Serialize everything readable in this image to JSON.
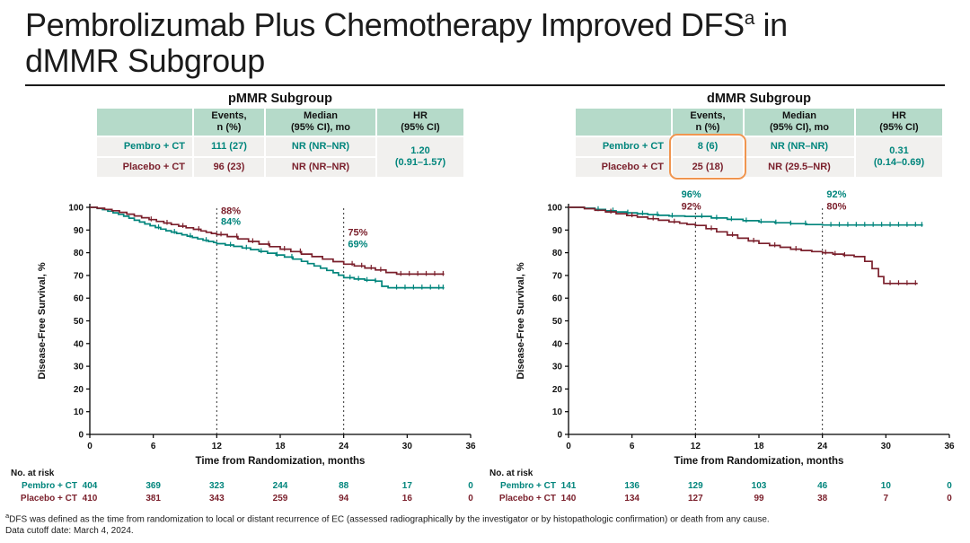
{
  "title": {
    "line1_main": "Pembrolizumab Plus Chemotherapy Improved DFS",
    "superscript": "a",
    "line1_tail": " in",
    "line2": "dMMR Subgroup"
  },
  "colors": {
    "teal": "#00857C",
    "maroon": "#7A1F2B",
    "header_green": "#B5DAC9",
    "cell_gray": "#F1F0EE",
    "highlight_orange": "#F0954F",
    "axis_black": "#111111"
  },
  "panels": [
    {
      "title": "pMMR Subgroup",
      "table": {
        "col_headers": [
          [
            "Events,",
            "n (%)"
          ],
          [
            "Median",
            "(95% CI), mo"
          ],
          [
            "HR",
            "(95% CI)"
          ]
        ],
        "rows": [
          {
            "label": "Pembro + CT",
            "events": "111 (27)",
            "median": "NR (NR–NR)"
          },
          {
            "label": "Placebo + CT",
            "events": "96 (23)",
            "median": "NR (NR–NR)"
          }
        ],
        "hr": [
          "1.20",
          "(0.91–1.57)"
        ],
        "highlight_events": false
      }
    },
    {
      "title": "dMMR Subgroup",
      "table": {
        "col_headers": [
          [
            "Events,",
            "n (%)"
          ],
          [
            "Median",
            "(95% CI), mo"
          ],
          [
            "HR",
            "(95% CI)"
          ]
        ],
        "rows": [
          {
            "label": "Pembro + CT",
            "events": "8 (6)",
            "median": "NR (NR–NR)"
          },
          {
            "label": "Placebo + CT",
            "events": "25 (18)",
            "median": "NR (29.5–NR)"
          }
        ],
        "hr": [
          "0.31",
          "(0.14–0.69)"
        ],
        "highlight_events": true
      }
    }
  ],
  "chart_data": [
    {
      "type": "line",
      "title": "pMMR Subgroup",
      "xlabel": "Time from Randomization, months",
      "ylabel": "Disease-Free Survival, %",
      "xlim": [
        0,
        36
      ],
      "ylim": [
        0,
        100
      ],
      "xticks": [
        0,
        6,
        12,
        18,
        24,
        30,
        36
      ],
      "yticks": [
        0,
        10,
        20,
        30,
        40,
        50,
        60,
        70,
        80,
        90,
        100
      ],
      "grid": false,
      "reference_lines_x": [
        12,
        24
      ],
      "series": [
        {
          "name": "Pembro + CT",
          "color": "teal",
          "step": [
            [
              0,
              100
            ],
            [
              0.7,
              99.5
            ],
            [
              1.2,
              99
            ],
            [
              1.7,
              98.3
            ],
            [
              2.2,
              97.6
            ],
            [
              2.7,
              96.9
            ],
            [
              3.2,
              96.1
            ],
            [
              3.7,
              95.2
            ],
            [
              4.2,
              94.3
            ],
            [
              4.7,
              93.5
            ],
            [
              5.2,
              92.7
            ],
            [
              5.7,
              91.9
            ],
            [
              6.2,
              91.1
            ],
            [
              6.7,
              90.4
            ],
            [
              7.2,
              89.7
            ],
            [
              7.7,
              89.1
            ],
            [
              8.2,
              88.5
            ],
            [
              8.7,
              87.9
            ],
            [
              9.2,
              87.3
            ],
            [
              9.7,
              86.7
            ],
            [
              10.2,
              86.1
            ],
            [
              10.7,
              85.5
            ],
            [
              11.2,
              85
            ],
            [
              11.7,
              84.5
            ],
            [
              12,
              84
            ],
            [
              12.8,
              83.4
            ],
            [
              13.6,
              82.8
            ],
            [
              14.4,
              82.1
            ],
            [
              15.2,
              81.4
            ],
            [
              16,
              80.6
            ],
            [
              16.8,
              79.8
            ],
            [
              17.6,
              79
            ],
            [
              18.4,
              78.1
            ],
            [
              19.2,
              77.2
            ],
            [
              20,
              76.2
            ],
            [
              20.6,
              75.2
            ],
            [
              21.2,
              74.2
            ],
            [
              21.8,
              73.2
            ],
            [
              22.4,
              72.2
            ],
            [
              23,
              71.2
            ],
            [
              23.5,
              70.1
            ],
            [
              24,
              69
            ],
            [
              25,
              68.4
            ],
            [
              26,
              67.9
            ],
            [
              27,
              67.5
            ],
            [
              27.6,
              65.2
            ],
            [
              28.2,
              64.6
            ],
            [
              33.5,
              64.6
            ]
          ],
          "censor_times": [
            6.5,
            8,
            9.5,
            11,
            13.3,
            14.8,
            16.2,
            17.7,
            19.1,
            24.6,
            25.4,
            26.2,
            27,
            29,
            29.8,
            30.6,
            31.4,
            32.2,
            33,
            33.4
          ]
        },
        {
          "name": "Placebo + CT",
          "color": "maroon",
          "step": [
            [
              0,
              100
            ],
            [
              0.7,
              99.6
            ],
            [
              1.4,
              99.1
            ],
            [
              2.1,
              98.5
            ],
            [
              2.8,
              97.8
            ],
            [
              3.5,
              97
            ],
            [
              4.2,
              96.2
            ],
            [
              4.9,
              95.4
            ],
            [
              5.6,
              94.6
            ],
            [
              6.3,
              93.8
            ],
            [
              7,
              93.1
            ],
            [
              7.7,
              92.4
            ],
            [
              8.4,
              91.7
            ],
            [
              9.1,
              91
            ],
            [
              9.8,
              90.3
            ],
            [
              10.5,
              89.6
            ],
            [
              11,
              89
            ],
            [
              11.5,
              88.5
            ],
            [
              12,
              88
            ],
            [
              13,
              87.1
            ],
            [
              14,
              86.1
            ],
            [
              15,
              85
            ],
            [
              16,
              83.8
            ],
            [
              17,
              82.7
            ],
            [
              18,
              81.6
            ],
            [
              19,
              80.5
            ],
            [
              20,
              79.4
            ],
            [
              21,
              78.3
            ],
            [
              22,
              77.2
            ],
            [
              23,
              76.1
            ],
            [
              24,
              75
            ],
            [
              25,
              74.2
            ],
            [
              26,
              73.3
            ],
            [
              27,
              72.4
            ],
            [
              28,
              71.3
            ],
            [
              29,
              70.6
            ],
            [
              33.5,
              70.6
            ]
          ],
          "censor_times": [
            5.8,
            7.3,
            8.8,
            10.3,
            12.4,
            13.9,
            15.4,
            16.9,
            18.4,
            19.9,
            24.8,
            25.7,
            26.6,
            27.5,
            29.4,
            30.2,
            31,
            31.8,
            32.6,
            33.4
          ]
        }
      ],
      "annotations": [
        {
          "x": 12.4,
          "y": 97,
          "text": "88%",
          "color": "maroon",
          "anchor": "start"
        },
        {
          "x": 12.4,
          "y": 92.2,
          "text": "84%",
          "color": "teal",
          "anchor": "start"
        },
        {
          "x": 24.4,
          "y": 87.5,
          "text": "75%",
          "color": "maroon",
          "anchor": "start"
        },
        {
          "x": 24.4,
          "y": 82.5,
          "text": "69%",
          "color": "teal",
          "anchor": "start"
        }
      ],
      "at_risk": {
        "label": "No. at risk",
        "rows": [
          {
            "name": "Pembro + CT",
            "color": "teal",
            "counts": [
              404,
              369,
              323,
              244,
              88,
              17,
              0
            ]
          },
          {
            "name": "Placebo + CT",
            "color": "maroon",
            "counts": [
              410,
              381,
              343,
              259,
              94,
              16,
              0
            ]
          }
        ]
      }
    },
    {
      "type": "line",
      "title": "dMMR Subgroup",
      "xlabel": "Time from Randomization, months",
      "ylabel": "Disease-Free Survival, %",
      "xlim": [
        0,
        36
      ],
      "ylim": [
        0,
        100
      ],
      "xticks": [
        0,
        6,
        12,
        18,
        24,
        30,
        36
      ],
      "yticks": [
        0,
        10,
        20,
        30,
        40,
        50,
        60,
        70,
        80,
        90,
        100
      ],
      "grid": false,
      "reference_lines_x": [
        12,
        24
      ],
      "series": [
        {
          "name": "Pembro + CT",
          "color": "teal",
          "step": [
            [
              0,
              100
            ],
            [
              1.5,
              99.6
            ],
            [
              2.5,
              99.1
            ],
            [
              3.5,
              98.5
            ],
            [
              4.5,
              98
            ],
            [
              5.5,
              97.6
            ],
            [
              6.5,
              97.2
            ],
            [
              7.5,
              96.8
            ],
            [
              8.5,
              96.5
            ],
            [
              9.5,
              96.2
            ],
            [
              11,
              96
            ],
            [
              13.5,
              95.3
            ],
            [
              15,
              94.7
            ],
            [
              16.5,
              94.1
            ],
            [
              18,
              93.6
            ],
            [
              19.5,
              93.2
            ],
            [
              21,
              92.8
            ],
            [
              22.5,
              92.4
            ],
            [
              24,
              92.2
            ],
            [
              33.5,
              92.2
            ]
          ],
          "censor_times": [
            2.8,
            4.2,
            5.6,
            7,
            8.4,
            9.8,
            12.6,
            14,
            15.4,
            16.8,
            18.2,
            19.6,
            21,
            22.4,
            24.8,
            25.6,
            26.4,
            27.2,
            28,
            28.8,
            29.6,
            30.4,
            31.2,
            32,
            32.8,
            33.4
          ]
        },
        {
          "name": "Placebo + CT",
          "color": "maroon",
          "step": [
            [
              0,
              100
            ],
            [
              1.5,
              99.4
            ],
            [
              2.5,
              98.7
            ],
            [
              3.5,
              98
            ],
            [
              4.5,
              97.2
            ],
            [
              5.5,
              96.4
            ],
            [
              6.5,
              95.7
            ],
            [
              7.5,
              95
            ],
            [
              8.5,
              94.3
            ],
            [
              9.5,
              93.6
            ],
            [
              10.5,
              93
            ],
            [
              11.2,
              92.5
            ],
            [
              12,
              92
            ],
            [
              13,
              90.6
            ],
            [
              14,
              89.2
            ],
            [
              15,
              87.8
            ],
            [
              16,
              86.4
            ],
            [
              17,
              85.2
            ],
            [
              18,
              84.1
            ],
            [
              19,
              83.2
            ],
            [
              20,
              82.4
            ],
            [
              21,
              81.6
            ],
            [
              22,
              81
            ],
            [
              23,
              80.5
            ],
            [
              24,
              80
            ],
            [
              25,
              79.4
            ],
            [
              26,
              78.9
            ],
            [
              27,
              78.3
            ],
            [
              28,
              76.2
            ],
            [
              28.7,
              73
            ],
            [
              29.3,
              69.5
            ],
            [
              29.8,
              66.5
            ],
            [
              33,
              66.5
            ]
          ],
          "censor_times": [
            4,
            6,
            8,
            10,
            13.5,
            15.5,
            17.5,
            19.5,
            21.5,
            24.3,
            25.2,
            26.1,
            30.4,
            31.2,
            32,
            32.8
          ]
        }
      ],
      "annotations": [
        {
          "x": 11.6,
          "y": 104.3,
          "text": "96%",
          "color": "teal",
          "anchor": "middle"
        },
        {
          "x": 11.6,
          "y": 99,
          "text": "92%",
          "color": "maroon",
          "anchor": "middle"
        },
        {
          "x": 24.4,
          "y": 104.3,
          "text": "92%",
          "color": "teal",
          "anchor": "start"
        },
        {
          "x": 24.4,
          "y": 99,
          "text": "80%",
          "color": "maroon",
          "anchor": "start"
        }
      ],
      "at_risk": {
        "label": "No. at risk",
        "rows": [
          {
            "name": "Pembro + CT",
            "color": "teal",
            "counts": [
              141,
              136,
              129,
              103,
              46,
              10,
              0
            ]
          },
          {
            "name": "Placebo + CT",
            "color": "maroon",
            "counts": [
              140,
              134,
              127,
              99,
              38,
              7,
              0
            ]
          }
        ]
      }
    }
  ],
  "footnotes": {
    "sup": "a",
    "line1": "DFS was defined as the time from randomization to local or distant recurrence of EC (assessed radiographically by the investigator or by histopathologic confirmation) or death from any cause.",
    "line2": "Data cutoff date: March 4, 2024."
  }
}
